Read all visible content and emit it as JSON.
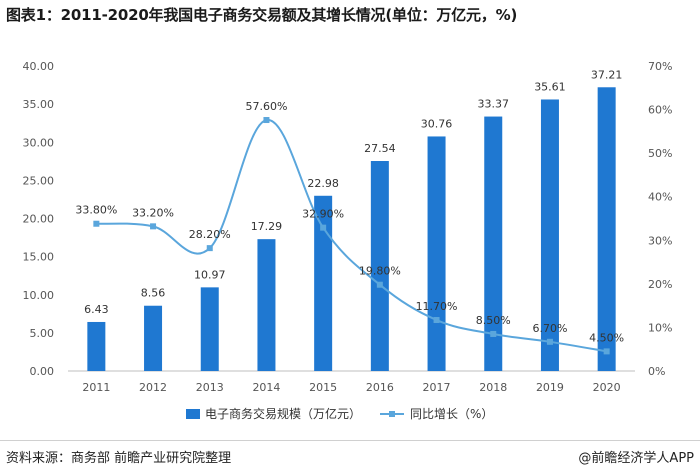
{
  "title": "图表1：2011-2020年我国电子商务交易额及其增长情况(单位：万亿元，%)",
  "footer": {
    "source": "资料来源：商务部 前瞻产业研究院整理",
    "brand": "@前瞻经济学人APP"
  },
  "colors": {
    "bar": "#1f78d1",
    "line": "#5aa6dc"
  },
  "chart_data": {
    "type": "bar",
    "categories": [
      "2011",
      "2012",
      "2013",
      "2014",
      "2015",
      "2016",
      "2017",
      "2018",
      "2019",
      "2020"
    ],
    "series": [
      {
        "name": "电子商务交易规模（万亿元）",
        "type": "bar",
        "axis": "left",
        "values": [
          6.43,
          8.56,
          10.97,
          17.29,
          22.98,
          27.54,
          30.76,
          33.37,
          35.61,
          37.21
        ],
        "labels": [
          "6.43",
          "8.56",
          "10.97",
          "17.29",
          "22.98",
          "27.54",
          "30.76",
          "33.37",
          "35.61",
          "37.21"
        ]
      },
      {
        "name": "同比增长（%）",
        "type": "line",
        "axis": "right",
        "values": [
          33.8,
          33.2,
          28.2,
          57.6,
          32.9,
          19.8,
          11.7,
          8.5,
          6.7,
          4.5
        ],
        "labels": [
          "33.80%",
          "33.20%",
          "28.20%",
          "57.60%",
          "32.90%",
          "19.80%",
          "11.70%",
          "8.50%",
          "6.70%",
          "4.50%"
        ]
      }
    ],
    "y_left": {
      "lim": [
        0,
        40
      ],
      "ticks": [
        "0.00",
        "5.00",
        "10.00",
        "15.00",
        "20.00",
        "25.00",
        "30.00",
        "35.00",
        "40.00"
      ]
    },
    "y_right": {
      "lim": [
        0,
        70
      ],
      "ticks": [
        "0%",
        "10%",
        "20%",
        "30%",
        "40%",
        "50%",
        "60%",
        "70%"
      ]
    },
    "grid": false,
    "legend_position": "bottom"
  }
}
